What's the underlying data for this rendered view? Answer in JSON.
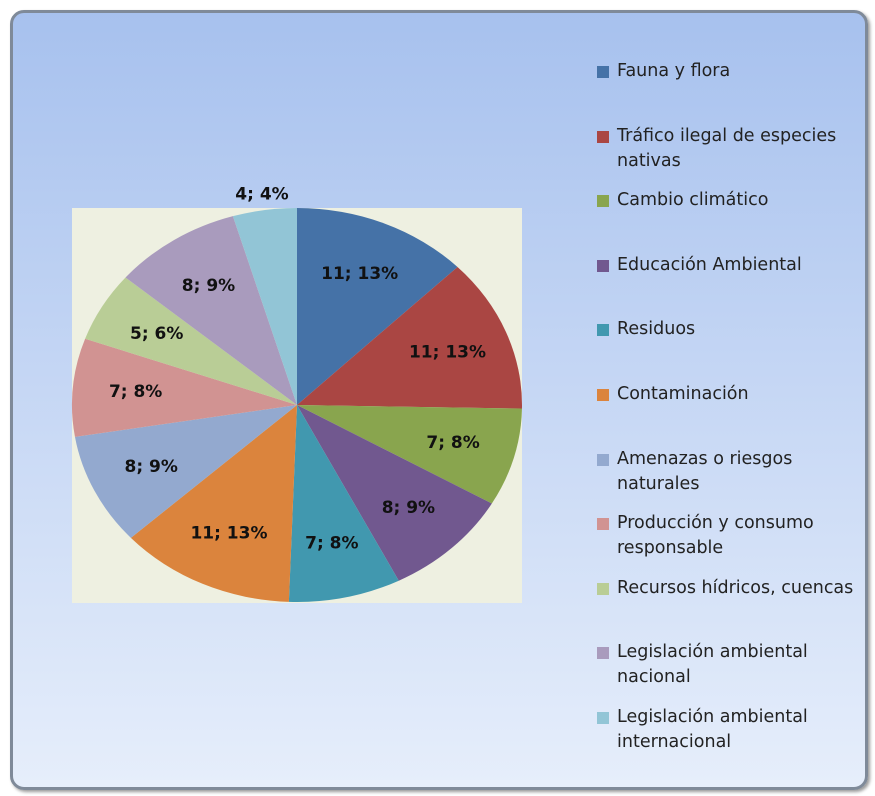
{
  "chart_data": {
    "type": "pie",
    "categories": [
      "Fauna y flora",
      "Tráfico ilegal de especies nativas",
      "Cambio climático",
      "Educación Ambiental",
      "Residuos",
      "Contaminación",
      "Amenazas o riesgos naturales",
      "Producción y consumo responsable",
      "Recursos hídricos, cuencas",
      "Legislación ambiental nacional",
      "Legislación ambiental internacional"
    ],
    "values": [
      11,
      11,
      7,
      8,
      7,
      11,
      8,
      7,
      5,
      8,
      4
    ],
    "value_labels": [
      "11; 13%",
      "11; 13%",
      "7; 8%",
      "8; 9%",
      "7; 8%",
      "11; 13%",
      "8; 9%",
      "7; 8%",
      "5; 6%",
      "8; 9%",
      "4; 4%"
    ],
    "colors": [
      "#4572a7",
      "#aa4643",
      "#89a54e",
      "#71588f",
      "#4198af",
      "#db843d",
      "#93a9cf",
      "#d19392",
      "#b9cd96",
      "#a99bbd",
      "#92c5d6"
    ],
    "legend": "right"
  }
}
